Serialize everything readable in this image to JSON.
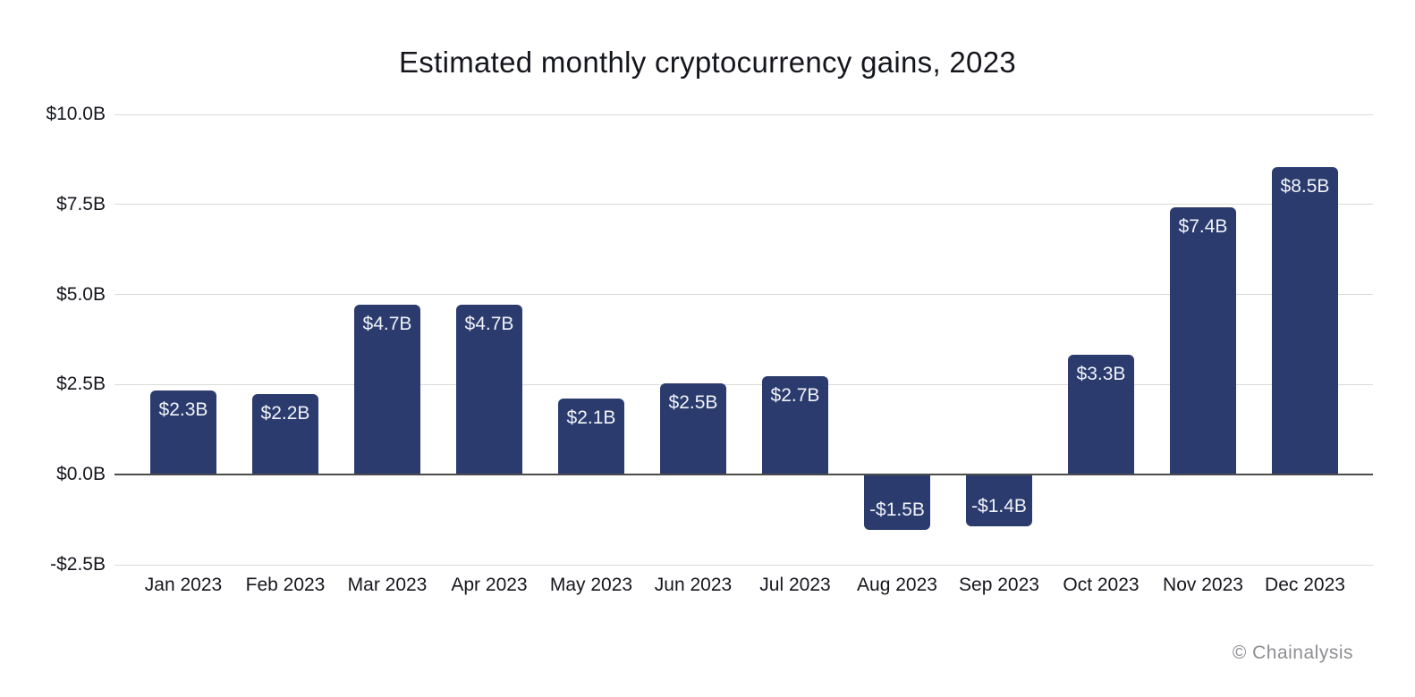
{
  "chart_data": {
    "type": "bar",
    "title": "Estimated monthly cryptocurrency gains, 2023",
    "xlabel": "",
    "ylabel": "",
    "unit": "USD billions",
    "categories": [
      "Jan 2023",
      "Feb 2023",
      "Mar 2023",
      "Apr 2023",
      "May 2023",
      "Jun 2023",
      "Jul 2023",
      "Aug 2023",
      "Sep 2023",
      "Oct 2023",
      "Nov 2023",
      "Dec 2023"
    ],
    "values": [
      2.3,
      2.2,
      4.7,
      4.7,
      2.1,
      2.5,
      2.7,
      -1.5,
      -1.4,
      3.3,
      7.4,
      8.5
    ],
    "data_labels": [
      "$2.3B",
      "$2.2B",
      "$4.7B",
      "$4.7B",
      "$2.1B",
      "$2.5B",
      "$2.7B",
      "-$1.5B",
      "-$1.4B",
      "$3.3B",
      "$7.4B",
      "$8.5B"
    ],
    "ylim": [
      -2.5,
      10
    ],
    "ytick_values": [
      10,
      7.5,
      5,
      2.5,
      0,
      -2.5
    ],
    "ytick_labels": [
      "$10.0B",
      "$7.5B",
      "$5.0B",
      "$2.5B",
      "$0.0B",
      "-$2.5B"
    ],
    "grid": "horizontal",
    "legend": "none",
    "colors": {
      "bar": "#2b3b6e",
      "bar_label": "#f1f3f8",
      "grid_line": "#dadada",
      "zero_line": "#4b4b4b",
      "axis_text": "#15161d"
    }
  },
  "attribution": "© Chainalysis"
}
